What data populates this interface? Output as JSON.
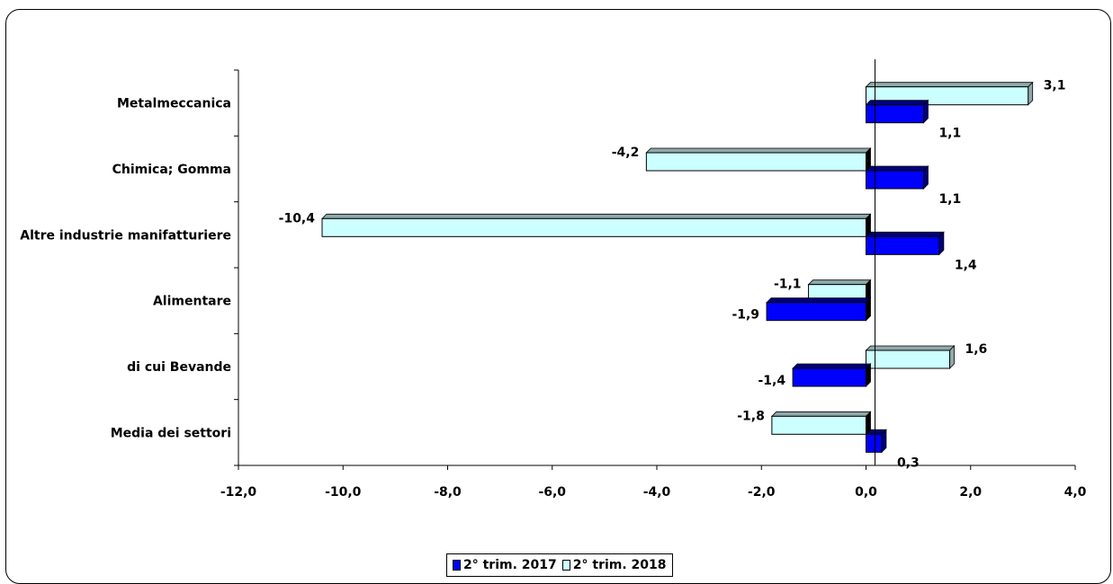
{
  "chart_data": {
    "type": "bar",
    "orientation": "horizontal",
    "categories": [
      "Metalmeccanica",
      "Chimica; Gomma",
      "Altre industrie manifatturiere",
      "Alimentare",
      "di cui Bevande",
      "Media dei settori"
    ],
    "series": [
      {
        "name": "2° trim. 2017",
        "color": "#0000ff",
        "side_color": "#00007a",
        "values": [
          1.1,
          1.1,
          1.4,
          -1.9,
          -1.4,
          0.3
        ],
        "labels": [
          "1,1",
          "1,1",
          "1,4",
          "-1,9",
          "-1,4",
          "0,3"
        ]
      },
      {
        "name": "2° trim. 2018",
        "color": "#ccffff",
        "side_color": "#8fa9a9",
        "values": [
          3.1,
          -4.2,
          -10.4,
          -1.1,
          1.6,
          -1.8
        ],
        "labels": [
          "3,1",
          "-4,2",
          "-10,4",
          "-1,1",
          "1,6",
          "-1,8"
        ]
      }
    ],
    "xlim": [
      -12,
      4
    ],
    "xticks": [
      -12,
      -10,
      -8,
      -6,
      -4,
      -2,
      0,
      2,
      4
    ],
    "xtick_labels": [
      "-12,0",
      "-10,0",
      "-8,0",
      "-6,0",
      "-4,0",
      "-2,0",
      "0,0",
      "2,0",
      "4,0"
    ],
    "legend_position": "bottom",
    "grid": false
  }
}
